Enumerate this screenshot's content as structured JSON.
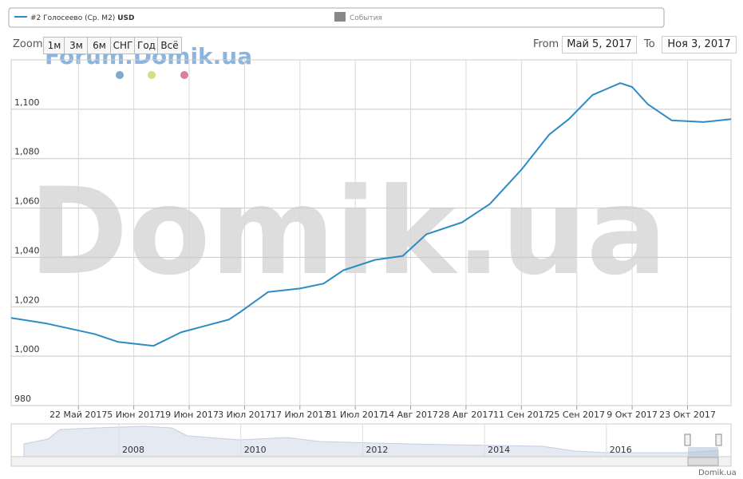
{
  "ui": {
    "legend_unit": "USD",
    "events_label": "События",
    "zoom_label": "Zoom",
    "zoom_buttons": [
      "1м",
      "3м",
      "6м",
      "СНГ",
      "Год",
      "Всё"
    ],
    "from_label": "From",
    "from_value": "Май 5, 2017",
    "to_label": "To",
    "to_value": "Ноя 3, 2017",
    "watermark_small": "Forum.Domik.ua",
    "watermark_big": "Domik.ua",
    "credit": "Domik.ua",
    "navigator_years": [
      "2008",
      "2010",
      "2012",
      "2014",
      "2016"
    ]
  },
  "chart_data": {
    "type": "line",
    "x": [
      "2017-05-05",
      "2017-05-14",
      "2017-05-26",
      "2017-06-01",
      "2017-06-10",
      "2017-06-17",
      "2017-06-29",
      "2017-07-02",
      "2017-07-09",
      "2017-07-17",
      "2017-07-23",
      "2017-07-28",
      "2017-08-05",
      "2017-08-12",
      "2017-08-18",
      "2017-08-27",
      "2017-09-03",
      "2017-09-11",
      "2017-09-18",
      "2017-09-23",
      "2017-09-29",
      "2017-10-06",
      "2017-10-09",
      "2017-10-13",
      "2017-10-19",
      "2017-10-27",
      "2017-11-03"
    ],
    "series": [
      {
        "name": "#2 Голосеево (Ср. М2)",
        "color": "#2f8bc4",
        "values": [
          1015.5,
          1013.2,
          1009,
          1005.8,
          1004.2,
          1009.7,
          1014.8,
          1018,
          1026,
          1027.4,
          1029.4,
          1034.8,
          1039,
          1040.6,
          1049.4,
          1054.2,
          1061.6,
          1075.5,
          1089.7,
          1096,
          1105.8,
          1110.6,
          1109,
          1102,
          1095.5,
          1094.8,
          1096
        ]
      }
    ],
    "xlim": [
      "2017-05-05",
      "2017-11-03"
    ],
    "xticks": [
      {
        "value": "2017-05-22",
        "label": "22 Май 2017"
      },
      {
        "value": "2017-06-05",
        "label": "5 Июн 2017"
      },
      {
        "value": "2017-06-19",
        "label": "19 Июн 2017"
      },
      {
        "value": "2017-07-03",
        "label": "3 Июл 2017"
      },
      {
        "value": "2017-07-17",
        "label": "17 Июл 2017"
      },
      {
        "value": "2017-07-31",
        "label": "31 Июл 2017"
      },
      {
        "value": "2017-08-14",
        "label": "14 Авг 2017"
      },
      {
        "value": "2017-08-28",
        "label": "28 Авг 2017"
      },
      {
        "value": "2017-09-11",
        "label": "11 Сен 2017"
      },
      {
        "value": "2017-09-25",
        "label": "25 Сен 2017"
      },
      {
        "value": "2017-10-09",
        "label": "9 Окт 2017"
      },
      {
        "value": "2017-10-23",
        "label": "23 Окт 2017"
      }
    ],
    "ylim": [
      980,
      1120
    ],
    "yticks": [
      980,
      {
        "value": 1000,
        "label": "1,000"
      },
      {
        "value": 1020,
        "label": "1,020"
      },
      {
        "value": 1040,
        "label": "1,040"
      },
      {
        "value": 1060,
        "label": "1,060"
      },
      {
        "value": 1080,
        "label": "1,080"
      },
      {
        "value": 1100,
        "label": "1,100"
      }
    ],
    "grid": true
  }
}
